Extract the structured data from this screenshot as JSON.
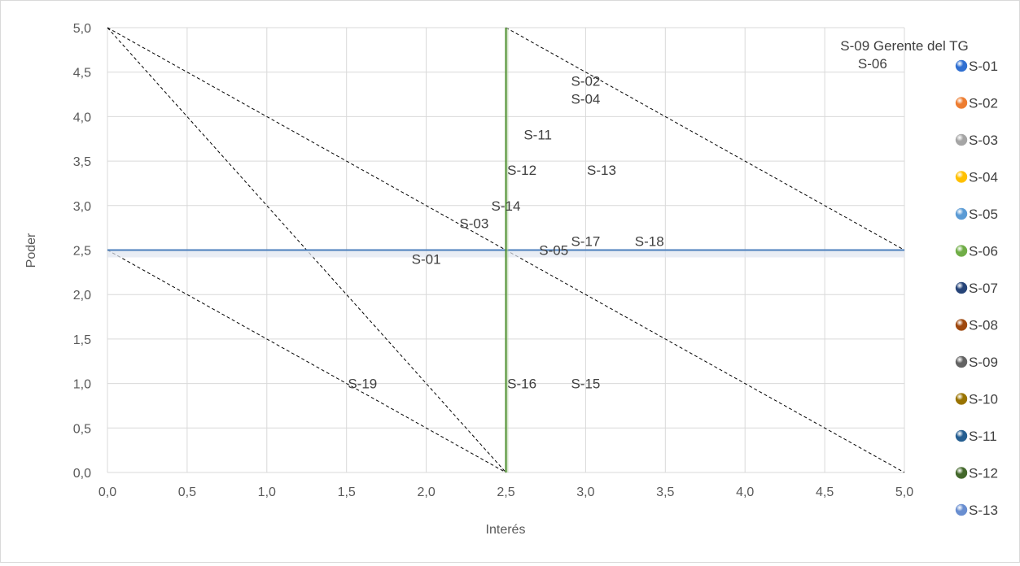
{
  "chart_data": {
    "type": "scatter",
    "title": "",
    "xlabel": "Interés",
    "ylabel": "Poder",
    "xlim": [
      0,
      5
    ],
    "ylim": [
      0,
      5
    ],
    "x_ticks": [
      "0,0",
      "0,5",
      "1,0",
      "1,5",
      "2,0",
      "2,5",
      "3,0",
      "3,5",
      "4,0",
      "4,5",
      "5,0"
    ],
    "y_ticks": [
      "0,0",
      "0,5",
      "1,0",
      "1,5",
      "2,0",
      "2,5",
      "3,0",
      "3,5",
      "4,0",
      "4,5",
      "5,0"
    ],
    "grid": true,
    "legend_position": "right",
    "reference_lines": [
      {
        "orientation": "horizontal",
        "value": 2.5,
        "color": "#4a7ebb"
      },
      {
        "orientation": "vertical",
        "value": 2.5,
        "color": "#4e8f2f"
      }
    ],
    "dashed_diagonals": [
      {
        "from": [
          0,
          5
        ],
        "to": [
          2.5,
          0
        ]
      },
      {
        "from": [
          0,
          2.5
        ],
        "to": [
          2.5,
          0
        ]
      },
      {
        "from": [
          2.5,
          5
        ],
        "to": [
          5,
          2.5
        ]
      },
      {
        "from": [
          0,
          5
        ],
        "to": [
          5,
          0
        ]
      }
    ],
    "point_labels": [
      {
        "text": "S-01",
        "x": 2.0,
        "y": 2.4
      },
      {
        "text": "S-02",
        "x": 3.0,
        "y": 4.4
      },
      {
        "text": "S-03",
        "x": 2.3,
        "y": 2.8
      },
      {
        "text": "S-04",
        "x": 3.0,
        "y": 4.2
      },
      {
        "text": "S-05",
        "x": 2.8,
        "y": 2.5
      },
      {
        "text": "S-06",
        "x": 4.8,
        "y": 4.6
      },
      {
        "text": "S-09 Gerente del TG",
        "x": 5.0,
        "y": 4.8
      },
      {
        "text": "S-11",
        "x": 2.7,
        "y": 3.8
      },
      {
        "text": "S-12",
        "x": 2.6,
        "y": 3.4
      },
      {
        "text": "S-13",
        "x": 3.1,
        "y": 3.4
      },
      {
        "text": "S-14",
        "x": 2.5,
        "y": 3.0
      },
      {
        "text": "S-15",
        "x": 3.0,
        "y": 1.0
      },
      {
        "text": "S-16",
        "x": 2.6,
        "y": 1.0
      },
      {
        "text": "S-17",
        "x": 3.0,
        "y": 2.6
      },
      {
        "text": "S-18",
        "x": 3.4,
        "y": 2.6
      },
      {
        "text": "S-19",
        "x": 1.6,
        "y": 1.0
      }
    ],
    "series": [
      {
        "name": "S-01",
        "color": "#2f6fd1"
      },
      {
        "name": "S-02",
        "color": "#ed7d31"
      },
      {
        "name": "S-03",
        "color": "#a5a5a5"
      },
      {
        "name": "S-04",
        "color": "#ffc000"
      },
      {
        "name": "S-05",
        "color": "#5b9bd5"
      },
      {
        "name": "S-06",
        "color": "#70ad47"
      },
      {
        "name": "S-07",
        "color": "#264478"
      },
      {
        "name": "S-08",
        "color": "#9e480e"
      },
      {
        "name": "S-09",
        "color": "#636363"
      },
      {
        "name": "S-10",
        "color": "#997300"
      },
      {
        "name": "S-11",
        "color": "#255e91"
      },
      {
        "name": "S-12",
        "color": "#43682b"
      },
      {
        "name": "S-13",
        "color": "#698ed0"
      }
    ]
  }
}
